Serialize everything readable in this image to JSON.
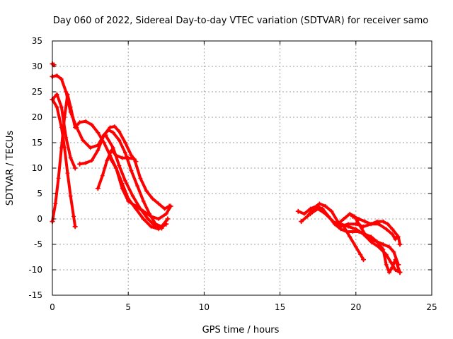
{
  "chart_data": {
    "type": "scatter",
    "title": "Day 060 of 2022, Sidereal Day-to-day VTEC variation (SDTVAR) for receiver samo",
    "xlabel": "GPS time / hours",
    "ylabel": "SDTVAR / TECUs",
    "xlim": [
      0,
      25
    ],
    "ylim": [
      -15,
      35
    ],
    "xticks": [
      0,
      5,
      10,
      15,
      20,
      25
    ],
    "yticks": [
      -15,
      -10,
      -5,
      0,
      5,
      10,
      15,
      20,
      25,
      30,
      35
    ],
    "grid": true,
    "marker": "+",
    "color": "#ff0000",
    "series": [
      {
        "name": "trace-1",
        "points": [
          [
            0.0,
            30.5
          ],
          [
            0.1,
            30.3
          ]
        ]
      },
      {
        "name": "trace-2",
        "points": [
          [
            0.0,
            28.0
          ],
          [
            0.3,
            28.2
          ],
          [
            0.6,
            27.5
          ],
          [
            0.9,
            25.0
          ],
          [
            1.2,
            21.0
          ],
          [
            1.6,
            18.0
          ],
          [
            2.0,
            15.5
          ],
          [
            2.5,
            14.0
          ],
          [
            3.0,
            14.5
          ],
          [
            3.4,
            16.5
          ],
          [
            3.8,
            18.0
          ],
          [
            4.1,
            18.2
          ],
          [
            4.4,
            17.2
          ],
          [
            4.8,
            15.0
          ],
          [
            5.2,
            12.5
          ],
          [
            5.5,
            11.3
          ]
        ]
      },
      {
        "name": "trace-3",
        "points": [
          [
            0.0,
            23.5
          ],
          [
            0.3,
            22.0
          ],
          [
            0.6,
            18.0
          ],
          [
            0.8,
            14.0
          ],
          [
            1.0,
            9.0
          ],
          [
            1.2,
            4.5
          ],
          [
            1.4,
            0.5
          ],
          [
            1.5,
            -1.5
          ]
        ]
      },
      {
        "name": "trace-4",
        "points": [
          [
            0.0,
            -0.5
          ],
          [
            0.2,
            3.0
          ],
          [
            0.4,
            8.0
          ],
          [
            0.6,
            14.0
          ],
          [
            0.8,
            20.0
          ],
          [
            1.0,
            24.5
          ],
          [
            1.2,
            22.0
          ],
          [
            1.5,
            18.0
          ],
          [
            1.8,
            19.0
          ],
          [
            2.2,
            19.2
          ],
          [
            2.6,
            18.5
          ],
          [
            3.0,
            17.0
          ],
          [
            3.4,
            15.0
          ],
          [
            3.8,
            12.5
          ],
          [
            4.2,
            10.0
          ],
          [
            4.6,
            7.0
          ],
          [
            5.0,
            4.0
          ],
          [
            5.5,
            2.0
          ],
          [
            6.0,
            0.0
          ],
          [
            6.5,
            -1.5
          ],
          [
            7.0,
            -2.0
          ],
          [
            7.5,
            -1.0
          ]
        ]
      },
      {
        "name": "trace-5",
        "points": [
          [
            0.0,
            23.5
          ],
          [
            0.3,
            24.5
          ],
          [
            0.6,
            22.0
          ],
          [
            0.9,
            16.0
          ],
          [
            1.2,
            12.0
          ],
          [
            1.5,
            10.0
          ]
        ]
      },
      {
        "name": "trace-6",
        "points": [
          [
            1.8,
            10.8
          ],
          [
            2.2,
            11.0
          ],
          [
            2.6,
            11.5
          ],
          [
            3.0,
            13.5
          ],
          [
            3.4,
            16.5
          ],
          [
            3.7,
            17.5
          ],
          [
            4.0,
            17.0
          ],
          [
            4.4,
            15.5
          ],
          [
            4.8,
            13.0
          ],
          [
            5.2,
            9.5
          ],
          [
            5.6,
            6.5
          ],
          [
            6.0,
            3.5
          ],
          [
            6.4,
            1.0
          ],
          [
            6.8,
            -1.0
          ],
          [
            7.2,
            -1.5
          ],
          [
            7.6,
            0.0
          ]
        ]
      },
      {
        "name": "trace-7",
        "points": [
          [
            3.0,
            6.0
          ],
          [
            3.3,
            8.5
          ],
          [
            3.6,
            11.5
          ],
          [
            3.9,
            13.5
          ],
          [
            4.2,
            12.5
          ],
          [
            4.6,
            12.0
          ],
          [
            5.0,
            12.0
          ],
          [
            5.4,
            11.8
          ],
          [
            5.8,
            8.0
          ],
          [
            6.2,
            5.5
          ],
          [
            6.6,
            4.0
          ],
          [
            7.0,
            3.0
          ],
          [
            7.4,
            2.0
          ],
          [
            7.7,
            2.5
          ]
        ]
      },
      {
        "name": "trace-8",
        "points": [
          [
            3.8,
            12.0
          ],
          [
            4.2,
            10.0
          ],
          [
            4.6,
            6.0
          ],
          [
            5.0,
            3.5
          ],
          [
            5.5,
            2.5
          ],
          [
            6.0,
            1.5
          ],
          [
            6.5,
            0.5
          ],
          [
            7.0,
            0.0
          ],
          [
            7.5,
            1.0
          ],
          [
            7.8,
            2.5
          ]
        ]
      },
      {
        "name": "trace-9",
        "points": [
          [
            3.5,
            16.5
          ],
          [
            4.0,
            14.0
          ],
          [
            4.4,
            10.5
          ],
          [
            4.8,
            7.5
          ],
          [
            5.3,
            4.5
          ],
          [
            5.8,
            2.0
          ],
          [
            6.3,
            0.0
          ],
          [
            6.8,
            -1.5
          ],
          [
            7.2,
            -1.8
          ]
        ]
      },
      {
        "name": "trace-10",
        "points": [
          [
            16.2,
            1.5
          ],
          [
            16.6,
            1.0
          ],
          [
            17.0,
            2.0
          ],
          [
            17.4,
            2.5
          ],
          [
            17.8,
            2.0
          ],
          [
            18.2,
            0.5
          ],
          [
            18.6,
            -1.0
          ],
          [
            19.0,
            -2.0
          ],
          [
            19.4,
            -2.5
          ],
          [
            19.8,
            -2.5
          ],
          [
            20.2,
            -2.5
          ],
          [
            20.6,
            -3.0
          ],
          [
            21.0,
            -3.5
          ],
          [
            21.4,
            -4.5
          ],
          [
            21.8,
            -5.0
          ],
          [
            22.2,
            -5.5
          ],
          [
            22.5,
            -6.5
          ],
          [
            22.8,
            -9.0
          ]
        ]
      },
      {
        "name": "trace-11",
        "points": [
          [
            16.4,
            -0.5
          ],
          [
            16.8,
            0.5
          ],
          [
            17.2,
            2.0
          ],
          [
            17.6,
            3.0
          ],
          [
            18.0,
            2.5
          ],
          [
            18.4,
            1.5
          ],
          [
            18.8,
            -0.5
          ],
          [
            19.2,
            -1.5
          ],
          [
            19.6,
            -3.5
          ],
          [
            20.0,
            -5.5
          ],
          [
            20.3,
            -7.0
          ],
          [
            20.5,
            -8.0
          ]
        ]
      },
      {
        "name": "trace-12",
        "points": [
          [
            17.0,
            1.0
          ],
          [
            17.5,
            2.0
          ],
          [
            18.0,
            1.0
          ],
          [
            18.5,
            -0.5
          ],
          [
            19.0,
            -1.5
          ],
          [
            19.5,
            -1.0
          ],
          [
            20.0,
            -1.0
          ],
          [
            20.5,
            -1.5
          ],
          [
            21.0,
            -1.0
          ],
          [
            21.5,
            -1.0
          ],
          [
            22.0,
            -2.0
          ],
          [
            22.4,
            -3.0
          ],
          [
            22.6,
            -4.0
          ],
          [
            22.7,
            -3.5
          ]
        ]
      },
      {
        "name": "trace-13",
        "points": [
          [
            18.8,
            -1.0
          ],
          [
            19.2,
            0.0
          ],
          [
            19.6,
            1.0
          ],
          [
            19.9,
            0.5
          ],
          [
            20.2,
            -1.0
          ],
          [
            20.6,
            -3.0
          ],
          [
            21.0,
            -4.0
          ],
          [
            21.4,
            -4.5
          ],
          [
            21.8,
            -6.0
          ],
          [
            22.0,
            -9.0
          ],
          [
            22.2,
            -10.5
          ],
          [
            22.4,
            -9.5
          ],
          [
            22.6,
            -8.0
          ],
          [
            22.9,
            -10.5
          ]
        ]
      },
      {
        "name": "trace-14",
        "points": [
          [
            19.0,
            -1.0
          ],
          [
            19.5,
            -1.5
          ],
          [
            20.0,
            -2.0
          ],
          [
            20.5,
            -3.0
          ],
          [
            21.0,
            -4.5
          ],
          [
            21.5,
            -5.5
          ],
          [
            22.0,
            -7.0
          ],
          [
            22.3,
            -8.5
          ],
          [
            22.6,
            -10.0
          ],
          [
            22.9,
            -10.5
          ]
        ]
      },
      {
        "name": "trace-15",
        "points": [
          [
            19.8,
            0.5
          ],
          [
            20.2,
            0.0
          ],
          [
            20.6,
            -0.5
          ],
          [
            21.0,
            -1.0
          ],
          [
            21.4,
            -0.5
          ],
          [
            21.8,
            -0.5
          ],
          [
            22.1,
            -1.0
          ],
          [
            22.4,
            -2.0
          ],
          [
            22.8,
            -3.5
          ],
          [
            22.9,
            -5.0
          ]
        ]
      }
    ]
  }
}
